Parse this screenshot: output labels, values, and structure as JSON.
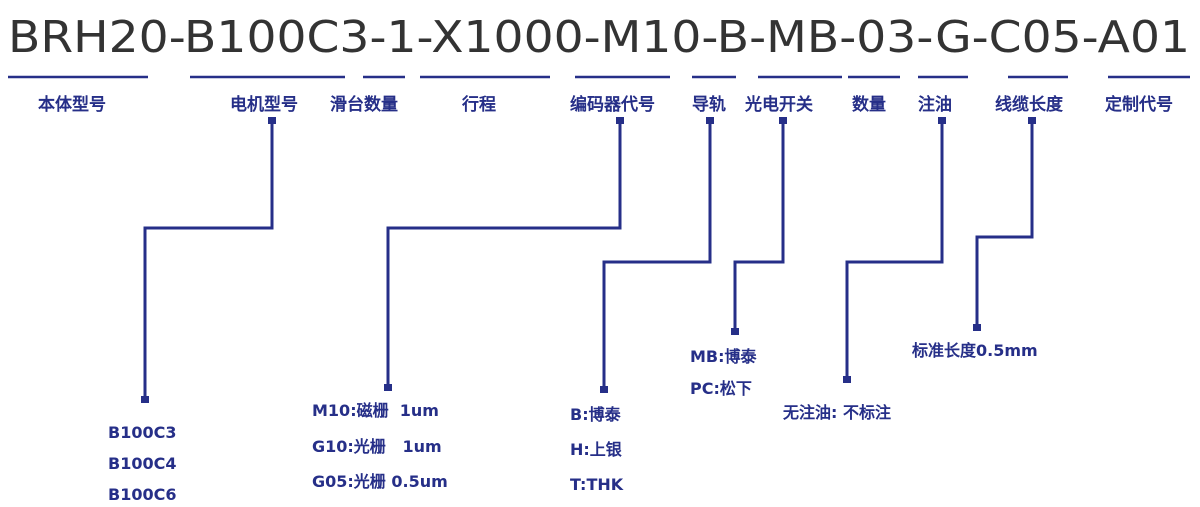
{
  "model_code": "BRH20-B100C3-1-X1000-M10-B-MB-03-G-C05-A01",
  "segments": [
    {
      "label": "本体型号"
    },
    {
      "label": "电机型号",
      "options": [
        "B100C3",
        "B100C4",
        "B100C6"
      ]
    },
    {
      "label": "滑台数量"
    },
    {
      "label": "行程"
    },
    {
      "label": "编码器代号",
      "options": [
        "M10:磁栅  1um",
        "G10:光栅   1um",
        "G05:光栅 0.5um"
      ]
    },
    {
      "label": "导轨",
      "options": [
        "B:博泰",
        "H:上银",
        "T:THK"
      ]
    },
    {
      "label": "光电开关",
      "options": [
        "MB:博泰",
        "PC:松下"
      ]
    },
    {
      "label": "数量"
    },
    {
      "label": "注油",
      "options": [
        "无注油: 不标注"
      ]
    },
    {
      "label": "线缆长度",
      "options": [
        "标准长度0.5mm"
      ]
    },
    {
      "label": "定制代号"
    }
  ],
  "colors": {
    "accent": "#262f88",
    "code_text": "#333333"
  }
}
